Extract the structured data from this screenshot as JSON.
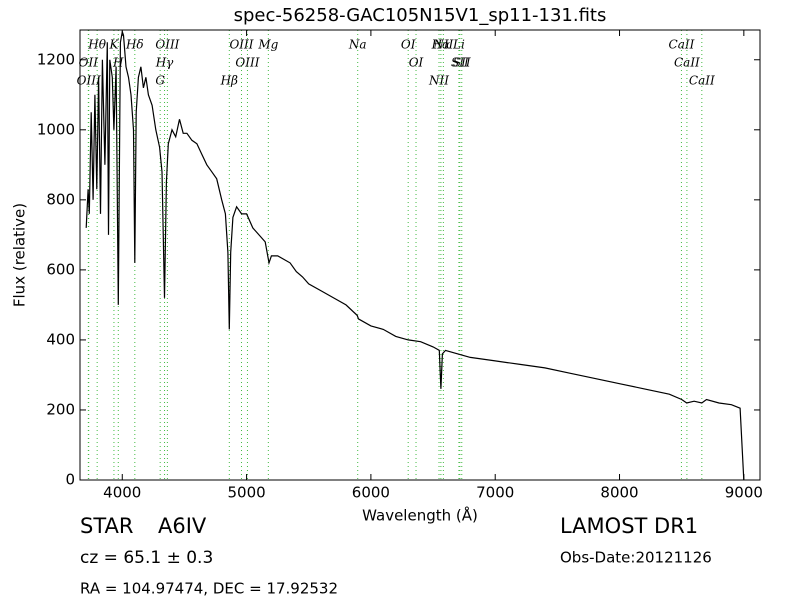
{
  "chart_data": {
    "type": "line",
    "title": "spec-56258-GAC105N15V1_sp11-131.fits",
    "x_label": "Wavelength (Å)",
    "y_label": "Flux (relative)",
    "xlim": [
      3660,
      9130
    ],
    "ylim": [
      0,
      1285
    ],
    "xticks": [
      4000,
      5000,
      6000,
      7000,
      8000,
      9000
    ],
    "yticks": [
      0,
      200,
      400,
      600,
      800,
      1000,
      1200
    ],
    "series": [
      {
        "color": "#000000",
        "x": [
          3710,
          3725,
          3735,
          3750,
          3765,
          3780,
          3795,
          3810,
          3825,
          3840,
          3860,
          3880,
          3889,
          3900,
          3920,
          3933,
          3950,
          3968,
          3985,
          4000,
          4010,
          4030,
          4050,
          4070,
          4090,
          4101,
          4112,
          4130,
          4150,
          4170,
          4190,
          4210,
          4240,
          4270,
          4300,
          4320,
          4340,
          4355,
          4370,
          4400,
          4430,
          4460,
          4490,
          4520,
          4560,
          4600,
          4640,
          4680,
          4720,
          4760,
          4800,
          4830,
          4850,
          4861,
          4872,
          4890,
          4920,
          4960,
          5000,
          5050,
          5100,
          5150,
          5180,
          5200,
          5250,
          5300,
          5350,
          5400,
          5450,
          5500,
          5600,
          5700,
          5800,
          5890,
          5900,
          6000,
          6100,
          6200,
          6300,
          6400,
          6500,
          6550,
          6563,
          6575,
          6600,
          6700,
          6800,
          7000,
          7200,
          7400,
          7600,
          7800,
          8000,
          8200,
          8400,
          8500,
          8540,
          8600,
          8662,
          8700,
          8800,
          8900,
          8970,
          9000
        ],
        "values": [
          720,
          830,
          760,
          1050,
          800,
          1100,
          830,
          1150,
          760,
          1200,
          900,
          1250,
          700,
          1200,
          1150,
          1000,
          1180,
          500,
          1250,
          1280,
          1270,
          1180,
          1150,
          1100,
          1000,
          620,
          1050,
          1150,
          1180,
          1120,
          1150,
          1100,
          1070,
          1000,
          950,
          880,
          520,
          850,
          960,
          1000,
          980,
          1030,
          990,
          990,
          970,
          960,
          930,
          900,
          880,
          860,
          800,
          760,
          650,
          430,
          650,
          750,
          780,
          760,
          760,
          720,
          700,
          680,
          620,
          640,
          640,
          630,
          620,
          595,
          580,
          560,
          540,
          520,
          500,
          470,
          460,
          440,
          430,
          410,
          400,
          395,
          380,
          370,
          260,
          360,
          370,
          360,
          350,
          340,
          330,
          320,
          305,
          290,
          275,
          260,
          245,
          230,
          220,
          225,
          220,
          230,
          220,
          215,
          205,
          0
        ]
      }
    ],
    "lines": [
      {
        "label": "Hθ",
        "wavelength": 3798
      },
      {
        "label": "OII",
        "wavelength": 3727
      },
      {
        "label": "OIII",
        "wavelength": 3730
      },
      {
        "label": "K",
        "wavelength": 3933
      },
      {
        "label": "Hδ",
        "wavelength": 4101
      },
      {
        "label": "H",
        "wavelength": 3968
      },
      {
        "label": "OIII",
        "wavelength": 4363
      },
      {
        "label": "Hγ",
        "wavelength": 4340
      },
      {
        "label": "G",
        "wavelength": 4305
      },
      {
        "label": "OIII",
        "wavelength": 4959
      },
      {
        "label": "OIII",
        "wavelength": 5007
      },
      {
        "label": "Hβ",
        "wavelength": 4861
      },
      {
        "label": "Mg",
        "wavelength": 5175
      },
      {
        "label": "Na",
        "wavelength": 5894
      },
      {
        "label": "OI",
        "wavelength": 6300
      },
      {
        "label": "OI",
        "wavelength": 6363
      },
      {
        "label": "Hα",
        "wavelength": 6563
      },
      {
        "label": "SII",
        "wavelength": 6716
      },
      {
        "label": "NII",
        "wavelength": 6548
      },
      {
        "label": "Li",
        "wavelength": 6708
      },
      {
        "label": "NII",
        "wavelength": 6583
      },
      {
        "label": "SII",
        "wavelength": 6731
      },
      {
        "label": "CaII",
        "wavelength": 8498
      },
      {
        "label": "CaII",
        "wavelength": 8542
      },
      {
        "label": "CaII",
        "wavelength": 8662
      }
    ],
    "line_color": "#44bb44"
  },
  "info": {
    "class": "STAR",
    "subclass": "A6IV",
    "cz": "cz = 65.1 ± 0.3",
    "coords": "RA = 104.97474, DEC = 17.92532",
    "survey": "LAMOST DR1",
    "obs_date": "Obs-Date:20121126"
  }
}
